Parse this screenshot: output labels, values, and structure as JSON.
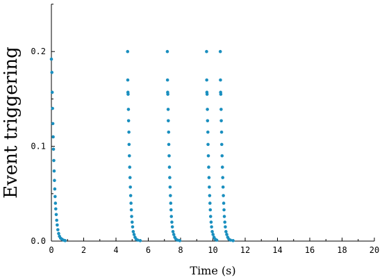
{
  "chart_data": {
    "type": "scatter",
    "xlabel": "Time (s)",
    "ylabel": "Event triggering",
    "xlim": [
      0,
      20
    ],
    "ylim": [
      0,
      0.25
    ],
    "x_ticks": [
      0,
      2,
      4,
      6,
      8,
      10,
      12,
      14,
      16,
      18,
      20
    ],
    "y_ticks": [
      0.0,
      0.1,
      0.2
    ],
    "x_tick_labels": [
      "0",
      "2",
      "4",
      "6",
      "8",
      "10",
      "12",
      "14",
      "16",
      "18",
      "20"
    ],
    "y_tick_labels": [
      "0.0",
      "0.1",
      "0.2"
    ],
    "grid": false,
    "marker_color": "#1a8fbf",
    "series": [
      {
        "points": [
          [
            0.0,
            0.192
          ],
          [
            0.03,
            0.178
          ],
          [
            0.05,
            0.157
          ],
          [
            0.07,
            0.14
          ],
          [
            0.09,
            0.124
          ],
          [
            0.11,
            0.11
          ],
          [
            0.13,
            0.097
          ],
          [
            0.15,
            0.085
          ],
          [
            0.17,
            0.074
          ],
          [
            0.19,
            0.064
          ],
          [
            0.21,
            0.055
          ],
          [
            0.23,
            0.047
          ],
          [
            0.25,
            0.04
          ],
          [
            0.27,
            0.034
          ],
          [
            0.3,
            0.028
          ],
          [
            0.33,
            0.022
          ],
          [
            0.36,
            0.017
          ],
          [
            0.4,
            0.012
          ],
          [
            0.45,
            0.008
          ],
          [
            0.5,
            0.005
          ],
          [
            0.57,
            0.003
          ],
          [
            0.65,
            0.002
          ],
          [
            0.75,
            0.001
          ],
          [
            0.85,
            0.0005
          ],
          [
            4.72,
            0.2
          ],
          [
            4.73,
            0.17
          ],
          [
            4.74,
            0.157
          ],
          [
            4.75,
            0.155
          ],
          [
            4.77,
            0.139
          ],
          [
            4.78,
            0.127
          ],
          [
            4.8,
            0.115
          ],
          [
            4.81,
            0.102
          ],
          [
            4.83,
            0.09
          ],
          [
            4.85,
            0.078
          ],
          [
            4.87,
            0.067
          ],
          [
            4.89,
            0.057
          ],
          [
            4.91,
            0.048
          ],
          [
            4.93,
            0.04
          ],
          [
            4.95,
            0.033
          ],
          [
            4.97,
            0.026
          ],
          [
            5.0,
            0.02
          ],
          [
            5.03,
            0.015
          ],
          [
            5.07,
            0.01
          ],
          [
            5.12,
            0.007
          ],
          [
            5.18,
            0.004
          ],
          [
            5.25,
            0.002
          ],
          [
            5.35,
            0.001
          ],
          [
            5.5,
            0.0005
          ],
          [
            7.18,
            0.2
          ],
          [
            7.19,
            0.17
          ],
          [
            7.2,
            0.157
          ],
          [
            7.21,
            0.155
          ],
          [
            7.23,
            0.139
          ],
          [
            7.24,
            0.127
          ],
          [
            7.26,
            0.115
          ],
          [
            7.27,
            0.102
          ],
          [
            7.29,
            0.09
          ],
          [
            7.31,
            0.078
          ],
          [
            7.33,
            0.067
          ],
          [
            7.35,
            0.057
          ],
          [
            7.37,
            0.048
          ],
          [
            7.39,
            0.04
          ],
          [
            7.41,
            0.033
          ],
          [
            7.43,
            0.026
          ],
          [
            7.46,
            0.02
          ],
          [
            7.49,
            0.015
          ],
          [
            7.53,
            0.01
          ],
          [
            7.58,
            0.007
          ],
          [
            7.64,
            0.004
          ],
          [
            7.71,
            0.002
          ],
          [
            7.81,
            0.001
          ],
          [
            7.95,
            0.0005
          ],
          [
            9.61,
            0.2
          ],
          [
            9.62,
            0.17
          ],
          [
            9.63,
            0.157
          ],
          [
            9.64,
            0.155
          ],
          [
            9.66,
            0.139
          ],
          [
            9.67,
            0.127
          ],
          [
            9.69,
            0.115
          ],
          [
            9.7,
            0.102
          ],
          [
            9.72,
            0.09
          ],
          [
            9.74,
            0.078
          ],
          [
            9.76,
            0.067
          ],
          [
            9.78,
            0.057
          ],
          [
            9.8,
            0.048
          ],
          [
            9.82,
            0.04
          ],
          [
            9.84,
            0.033
          ],
          [
            9.86,
            0.026
          ],
          [
            9.89,
            0.02
          ],
          [
            9.92,
            0.015
          ],
          [
            9.96,
            0.01
          ],
          [
            10.01,
            0.007
          ],
          [
            10.07,
            0.004
          ],
          [
            10.14,
            0.002
          ],
          [
            10.24,
            0.001
          ],
          [
            10.46,
            0.2
          ],
          [
            10.47,
            0.17
          ],
          [
            10.48,
            0.157
          ],
          [
            10.49,
            0.155
          ],
          [
            10.51,
            0.139
          ],
          [
            10.52,
            0.127
          ],
          [
            10.54,
            0.115
          ],
          [
            10.55,
            0.102
          ],
          [
            10.57,
            0.09
          ],
          [
            10.59,
            0.078
          ],
          [
            10.61,
            0.067
          ],
          [
            10.63,
            0.057
          ],
          [
            10.65,
            0.048
          ],
          [
            10.67,
            0.04
          ],
          [
            10.69,
            0.033
          ],
          [
            10.71,
            0.026
          ],
          [
            10.74,
            0.02
          ],
          [
            10.77,
            0.015
          ],
          [
            10.81,
            0.01
          ],
          [
            10.86,
            0.007
          ],
          [
            10.92,
            0.004
          ],
          [
            10.99,
            0.002
          ],
          [
            11.09,
            0.001
          ],
          [
            11.25,
            0.0005
          ]
        ]
      }
    ]
  }
}
